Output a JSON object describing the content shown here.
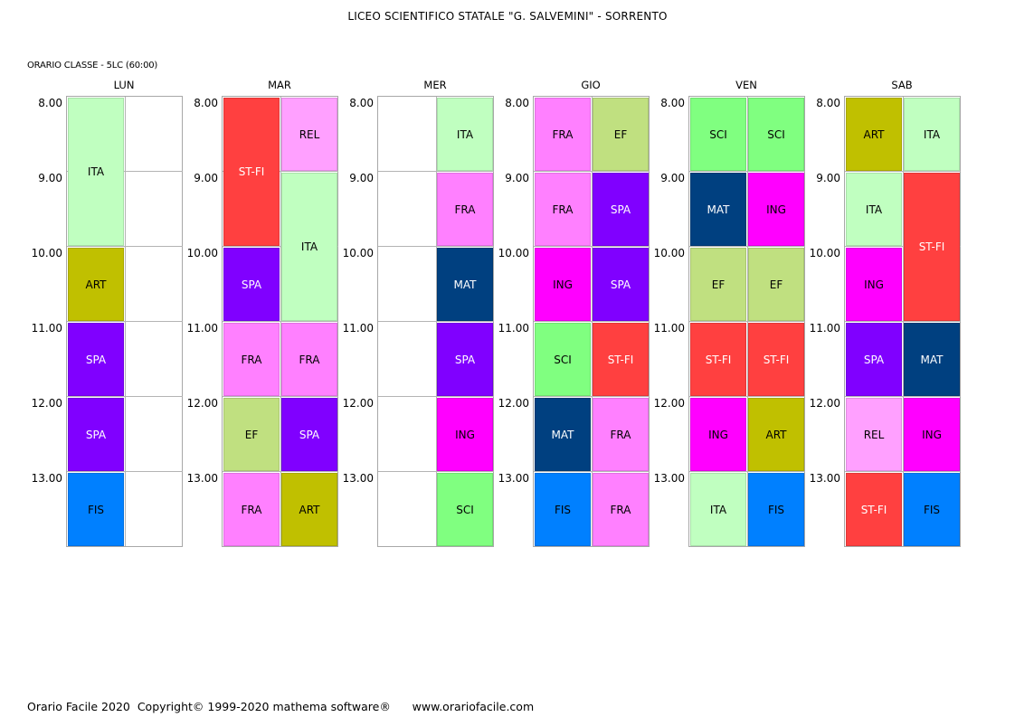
{
  "header": {
    "school": "LICEO SCIENTIFICO STATALE \"G. SALVEMINI\" - SORRENTO",
    "class_label": "ORARIO CLASSE  -  5LC (60:00)"
  },
  "hours": [
    "8.00",
    "9.00",
    "10.00",
    "11.00",
    "12.00",
    "13.00"
  ],
  "colors": {
    "ITA": {
      "bg": "#c0ffc0",
      "fg": "#000000"
    },
    "ART": {
      "bg": "#c0c000",
      "fg": "#000000"
    },
    "SPA": {
      "bg": "#8000ff",
      "fg": "#ffffff"
    },
    "FIS": {
      "bg": "#0080ff",
      "fg": "#000000"
    },
    "ST-FI": {
      "bg": "#ff4040",
      "fg": "#ffffff"
    },
    "REL": {
      "bg": "#ffa0ff",
      "fg": "#000000"
    },
    "FRA": {
      "bg": "#ff80ff",
      "fg": "#000000"
    },
    "EF": {
      "bg": "#c0e080",
      "fg": "#000000"
    },
    "MAT": {
      "bg": "#004080",
      "fg": "#ffffff"
    },
    "ING": {
      "bg": "#ff00ff",
      "fg": "#000000"
    },
    "SCI": {
      "bg": "#80ff80",
      "fg": "#000000"
    }
  },
  "days": [
    {
      "name": "LUN",
      "lessons": [
        {
          "subject": "ITA",
          "col": 0,
          "start": 0,
          "span": 2
        },
        {
          "subject": "ART",
          "col": 0,
          "start": 2,
          "span": 1
        },
        {
          "subject": "SPA",
          "col": 0,
          "start": 3,
          "span": 1
        },
        {
          "subject": "SPA",
          "col": 0,
          "start": 4,
          "span": 1
        },
        {
          "subject": "FIS",
          "col": 0,
          "start": 5,
          "span": 1
        }
      ]
    },
    {
      "name": "MAR",
      "lessons": [
        {
          "subject": "ST-FI",
          "col": 0,
          "start": 0,
          "span": 2
        },
        {
          "subject": "SPA",
          "col": 0,
          "start": 2,
          "span": 1
        },
        {
          "subject": "FRA",
          "col": 0,
          "start": 3,
          "span": 1
        },
        {
          "subject": "EF",
          "col": 0,
          "start": 4,
          "span": 1
        },
        {
          "subject": "FRA",
          "col": 0,
          "start": 5,
          "span": 1
        },
        {
          "subject": "REL",
          "col": 1,
          "start": 0,
          "span": 1
        },
        {
          "subject": "ITA",
          "col": 1,
          "start": 1,
          "span": 2
        },
        {
          "subject": "FRA",
          "col": 1,
          "start": 3,
          "span": 1
        },
        {
          "subject": "SPA",
          "col": 1,
          "start": 4,
          "span": 1
        },
        {
          "subject": "ART",
          "col": 1,
          "start": 5,
          "span": 1
        }
      ]
    },
    {
      "name": "MER",
      "lessons": [
        {
          "subject": "ITA",
          "col": 1,
          "start": 0,
          "span": 1
        },
        {
          "subject": "FRA",
          "col": 1,
          "start": 1,
          "span": 1
        },
        {
          "subject": "MAT",
          "col": 1,
          "start": 2,
          "span": 1
        },
        {
          "subject": "SPA",
          "col": 1,
          "start": 3,
          "span": 1
        },
        {
          "subject": "ING",
          "col": 1,
          "start": 4,
          "span": 1
        },
        {
          "subject": "SCI",
          "col": 1,
          "start": 5,
          "span": 1
        }
      ]
    },
    {
      "name": "GIO",
      "lessons": [
        {
          "subject": "FRA",
          "col": 0,
          "start": 0,
          "span": 1
        },
        {
          "subject": "FRA",
          "col": 0,
          "start": 1,
          "span": 1
        },
        {
          "subject": "ING",
          "col": 0,
          "start": 2,
          "span": 1
        },
        {
          "subject": "SCI",
          "col": 0,
          "start": 3,
          "span": 1
        },
        {
          "subject": "MAT",
          "col": 0,
          "start": 4,
          "span": 1
        },
        {
          "subject": "FIS",
          "col": 0,
          "start": 5,
          "span": 1
        },
        {
          "subject": "EF",
          "col": 1,
          "start": 0,
          "span": 1
        },
        {
          "subject": "SPA",
          "col": 1,
          "start": 1,
          "span": 1
        },
        {
          "subject": "SPA",
          "col": 1,
          "start": 2,
          "span": 1
        },
        {
          "subject": "ST-FI",
          "col": 1,
          "start": 3,
          "span": 1
        },
        {
          "subject": "FRA",
          "col": 1,
          "start": 4,
          "span": 1
        },
        {
          "subject": "FRA",
          "col": 1,
          "start": 5,
          "span": 1
        }
      ]
    },
    {
      "name": "VEN",
      "lessons": [
        {
          "subject": "SCI",
          "col": 0,
          "start": 0,
          "span": 1
        },
        {
          "subject": "MAT",
          "col": 0,
          "start": 1,
          "span": 1
        },
        {
          "subject": "EF",
          "col": 0,
          "start": 2,
          "span": 1
        },
        {
          "subject": "ST-FI",
          "col": 0,
          "start": 3,
          "span": 1
        },
        {
          "subject": "ING",
          "col": 0,
          "start": 4,
          "span": 1
        },
        {
          "subject": "ITA",
          "col": 0,
          "start": 5,
          "span": 1
        },
        {
          "subject": "SCI",
          "col": 1,
          "start": 0,
          "span": 1
        },
        {
          "subject": "ING",
          "col": 1,
          "start": 1,
          "span": 1
        },
        {
          "subject": "EF",
          "col": 1,
          "start": 2,
          "span": 1
        },
        {
          "subject": "ST-FI",
          "col": 1,
          "start": 3,
          "span": 1
        },
        {
          "subject": "ART",
          "col": 1,
          "start": 4,
          "span": 1
        },
        {
          "subject": "FIS",
          "col": 1,
          "start": 5,
          "span": 1
        }
      ]
    },
    {
      "name": "SAB",
      "lessons": [
        {
          "subject": "ART",
          "col": 0,
          "start": 0,
          "span": 1
        },
        {
          "subject": "ITA",
          "col": 0,
          "start": 1,
          "span": 1
        },
        {
          "subject": "ING",
          "col": 0,
          "start": 2,
          "span": 1
        },
        {
          "subject": "SPA",
          "col": 0,
          "start": 3,
          "span": 1
        },
        {
          "subject": "REL",
          "col": 0,
          "start": 4,
          "span": 1
        },
        {
          "subject": "ST-FI",
          "col": 0,
          "start": 5,
          "span": 1
        },
        {
          "subject": "ITA",
          "col": 1,
          "start": 0,
          "span": 1
        },
        {
          "subject": "ST-FI",
          "col": 1,
          "start": 1,
          "span": 2
        },
        {
          "subject": "MAT",
          "col": 1,
          "start": 3,
          "span": 1
        },
        {
          "subject": "ING",
          "col": 1,
          "start": 4,
          "span": 1
        },
        {
          "subject": "FIS",
          "col": 1,
          "start": 5,
          "span": 1
        }
      ]
    }
  ],
  "footer": {
    "product": "Orario Facile 2020",
    "copyright": "Copyright© 1999-2020 mathema software®",
    "website": "www.orariofacile.com"
  }
}
